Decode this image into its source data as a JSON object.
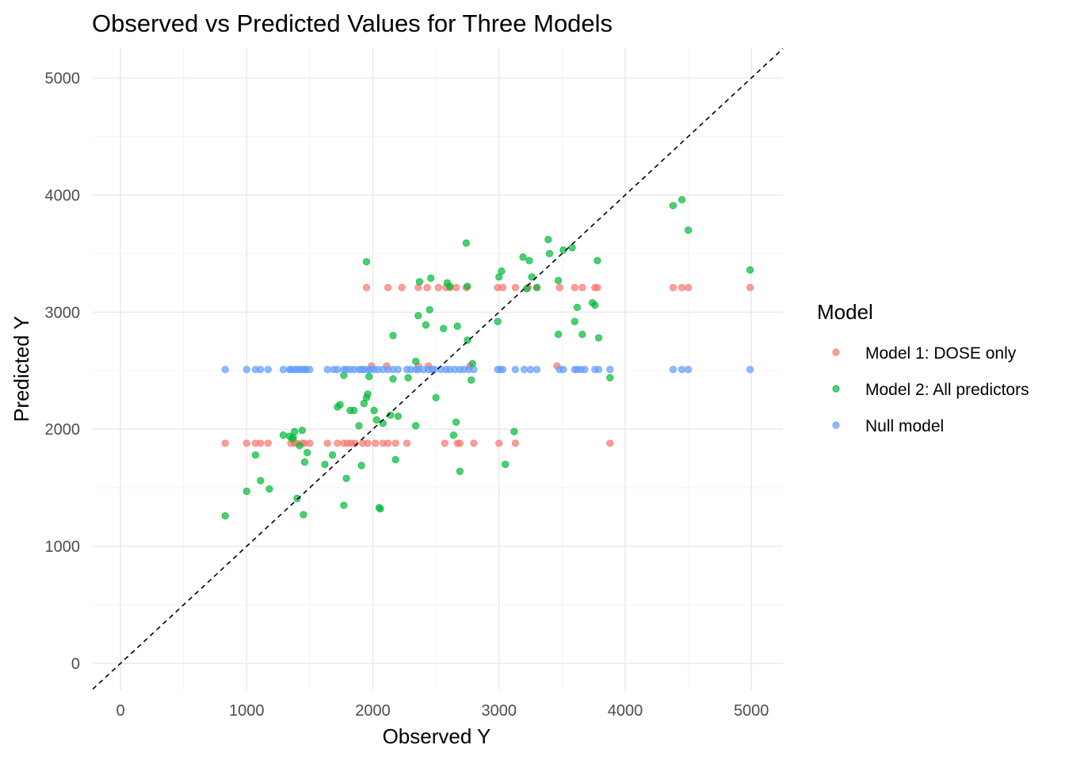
{
  "chart_data": {
    "type": "scatter",
    "title": "Observed vs Predicted Values for Three Models",
    "xlabel": "Observed Y",
    "ylabel": "Predicted Y",
    "xlim": [
      -220,
      5250
    ],
    "ylim": [
      -230,
      5260
    ],
    "x_ticks": [
      0,
      1000,
      2000,
      3000,
      4000,
      5000
    ],
    "y_ticks": [
      0,
      1000,
      2000,
      3000,
      4000,
      5000
    ],
    "x_tick_labels": [
      "0",
      "1000",
      "2000",
      "3000",
      "4000",
      "5000"
    ],
    "y_tick_labels": [
      "0",
      "1000",
      "2000",
      "3000",
      "4000",
      "5000"
    ],
    "grid": true,
    "reference_line": {
      "type": "identity",
      "style": "dashed",
      "color": "#000000"
    },
    "legend": {
      "title": "Model",
      "position": "right"
    },
    "series": [
      {
        "name": "Model 1: DOSE only",
        "color": "#F8766D",
        "x": [
          830,
          1000,
          1070,
          1110,
          1170,
          1350,
          1380,
          1400,
          1440,
          1460,
          1500,
          1640,
          1720,
          1770,
          1800,
          1830,
          1860,
          1920,
          1960,
          2020,
          2080,
          2120,
          2180,
          2270,
          2570,
          2670,
          2690,
          2800,
          3000,
          3130,
          3880,
          1990,
          2110,
          2360,
          2440,
          2770,
          3460,
          1950,
          2120,
          2230,
          2360,
          2430,
          2520,
          2580,
          2610,
          2660,
          2740,
          2990,
          3030,
          3130,
          3230,
          3300,
          3480,
          3600,
          3660,
          3760,
          3780,
          4380,
          4450,
          4500,
          4990
        ],
        "y": [
          1880,
          1880,
          1880,
          1880,
          1880,
          1880,
          1880,
          1880,
          1880,
          1880,
          1880,
          1880,
          1880,
          1880,
          1880,
          1880,
          1880,
          1880,
          1880,
          1880,
          1880,
          1880,
          1880,
          1880,
          1880,
          1880,
          1880,
          1880,
          1880,
          1880,
          1880,
          2540,
          2540,
          2540,
          2540,
          2540,
          2540,
          3210,
          3210,
          3210,
          3210,
          3210,
          3210,
          3210,
          3210,
          3210,
          3210,
          3210,
          3210,
          3210,
          3210,
          3210,
          3210,
          3210,
          3210,
          3210,
          3210,
          3210,
          3210,
          3210,
          3210
        ]
      },
      {
        "name": "Model 2: All predictors",
        "color": "#00BA38",
        "x": [
          830,
          1000,
          1070,
          1110,
          1180,
          1290,
          1340,
          1360,
          1400,
          1420,
          1440,
          1450,
          1460,
          1480,
          1620,
          1680,
          1720,
          1740,
          1770,
          1790,
          1820,
          1850,
          1890,
          1910,
          1930,
          1950,
          1960,
          1970,
          2010,
          2030,
          2060,
          2080,
          2140,
          2160,
          2180,
          2200,
          2280,
          2340,
          2360,
          2370,
          2420,
          2450,
          2460,
          2500,
          2560,
          2590,
          2610,
          2640,
          2660,
          2670,
          2690,
          2740,
          2750,
          2780,
          2790,
          2990,
          3000,
          3020,
          3050,
          3120,
          3190,
          3240,
          3260,
          3300,
          3400,
          3470,
          3470,
          3510,
          3580,
          3600,
          3620,
          3660,
          3740,
          3760,
          3780,
          3790,
          3880,
          4380,
          4450,
          4500,
          4990,
          1950,
          2750,
          3220,
          2340,
          2160,
          2050,
          1370,
          1380,
          1770,
          3390
        ],
        "y": [
          1260,
          1470,
          1780,
          1560,
          1490,
          1950,
          1940,
          1920,
          1410,
          1860,
          1990,
          1270,
          1720,
          1800,
          1700,
          1780,
          2190,
          2210,
          1350,
          1580,
          2160,
          2160,
          2030,
          1690,
          2220,
          2270,
          2300,
          2450,
          2160,
          2080,
          1320,
          2050,
          2120,
          2430,
          1740,
          2110,
          2440,
          2030,
          2970,
          3260,
          2890,
          3020,
          3290,
          2270,
          2860,
          3250,
          3220,
          1950,
          2060,
          2880,
          1640,
          3590,
          3220,
          2420,
          2560,
          2920,
          3300,
          3350,
          1700,
          1980,
          3470,
          3440,
          3300,
          3210,
          3500,
          3270,
          2810,
          3530,
          3550,
          2920,
          3040,
          2810,
          3080,
          3060,
          3440,
          2780,
          2440,
          3910,
          3960,
          3700,
          3360,
          3430,
          2760,
          3200,
          2580,
          2800,
          1330,
          1930,
          1980,
          2460,
          3620
        ]
      },
      {
        "name": "Null model",
        "color": "#619CFF",
        "x": [
          830,
          1000,
          1070,
          1110,
          1170,
          1290,
          1340,
          1350,
          1380,
          1400,
          1420,
          1440,
          1460,
          1470,
          1500,
          1640,
          1690,
          1720,
          1770,
          1790,
          1820,
          1850,
          1890,
          1910,
          1930,
          1960,
          1980,
          2010,
          2040,
          2080,
          2120,
          2160,
          2200,
          2270,
          2300,
          2340,
          2360,
          2400,
          2440,
          2470,
          2490,
          2540,
          2580,
          2610,
          2650,
          2690,
          2720,
          2760,
          2800,
          2990,
          3010,
          3030,
          3130,
          3200,
          3250,
          3300,
          3480,
          3510,
          3600,
          3620,
          3650,
          3680,
          3760,
          3790,
          3880,
          4380,
          4450,
          4500,
          4990
        ],
        "y": [
          2510,
          2510,
          2510,
          2510,
          2510,
          2510,
          2510,
          2510,
          2510,
          2510,
          2510,
          2510,
          2510,
          2510,
          2510,
          2510,
          2510,
          2510,
          2510,
          2510,
          2510,
          2510,
          2510,
          2510,
          2510,
          2510,
          2510,
          2510,
          2510,
          2510,
          2510,
          2510,
          2510,
          2510,
          2510,
          2510,
          2510,
          2510,
          2510,
          2510,
          2510,
          2510,
          2510,
          2510,
          2510,
          2510,
          2510,
          2510,
          2510,
          2510,
          2510,
          2510,
          2510,
          2510,
          2510,
          2510,
          2510,
          2510,
          2510,
          2510,
          2510,
          2510,
          2510,
          2510,
          2510,
          2510,
          2510,
          2510,
          2510
        ]
      }
    ]
  }
}
